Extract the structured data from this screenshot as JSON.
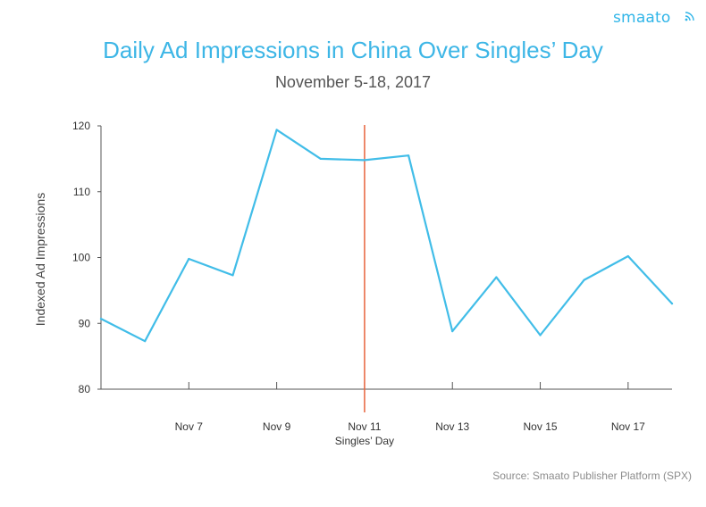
{
  "brand": {
    "logo_text": "smaato",
    "color": "#30b5e8"
  },
  "header": {
    "title": "Daily Ad Impressions in China Over Singles’ Day",
    "subtitle": "November 5-18, 2017"
  },
  "footer": {
    "source": "Source: Smaato Publisher Platform (SPX)"
  },
  "chart_data": {
    "type": "line",
    "title": "Daily Ad Impressions in China Over Singles’ Day",
    "subtitle": "November 5-18, 2017",
    "xlabel": "",
    "ylabel": "Indexed Ad Impressions",
    "x": [
      "Nov 5",
      "Nov 6",
      "Nov 7",
      "Nov 8",
      "Nov 9",
      "Nov 10",
      "Nov 11",
      "Nov 12",
      "Nov 13",
      "Nov 14",
      "Nov 15",
      "Nov 16",
      "Nov 17",
      "Nov 18"
    ],
    "x_tick_labels": [
      "Nov 7",
      "Nov 9",
      "Nov 11",
      "Nov 13",
      "Nov 15",
      "Nov 17"
    ],
    "y_ticks": [
      80,
      90,
      100,
      110,
      120
    ],
    "ylim": [
      80,
      120
    ],
    "series": [
      {
        "values": [
          90.7,
          87.3,
          99.8,
          97.3,
          119.4,
          115.0,
          114.8,
          115.5,
          88.8,
          97.0,
          88.2,
          96.6,
          100.2,
          93.0
        ],
        "color": "#41bde8"
      }
    ],
    "annotations": [
      {
        "x": "Nov 11",
        "label": "Singles’ Day",
        "type": "vertical-line",
        "color": "#e8643c"
      }
    ],
    "grid": false
  }
}
